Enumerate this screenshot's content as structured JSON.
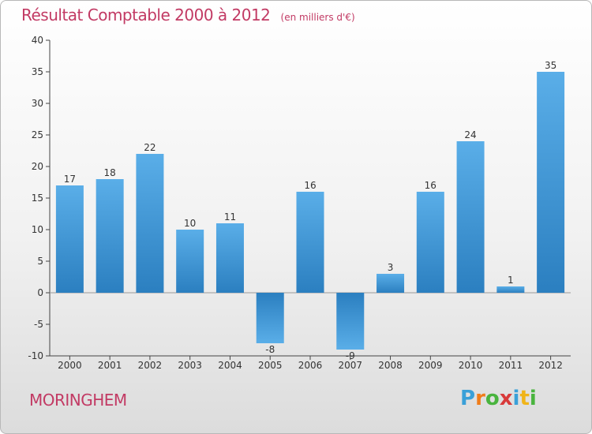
{
  "title": "Résultat Comptable 2000 à 2012",
  "subtitle": "(en milliers d'€)",
  "commune": "MORINGHEM",
  "logo": {
    "letters": [
      "P",
      "r",
      "o",
      "x",
      "i",
      "t",
      "i"
    ],
    "colors": [
      "#3aa0d8",
      "#f07d1a",
      "#49b43e",
      "#d83a3a",
      "#3aa0d8",
      "#f0b419",
      "#49b43e"
    ]
  },
  "chart_data": {
    "type": "bar",
    "categories": [
      "2000",
      "2001",
      "2002",
      "2003",
      "2004",
      "2005",
      "2006",
      "2007",
      "2008",
      "2009",
      "2010",
      "2011",
      "2012"
    ],
    "values": [
      17,
      18,
      22,
      10,
      11,
      -8,
      16,
      -9,
      3,
      16,
      24,
      1,
      35
    ],
    "data_labels": [
      "17",
      "18",
      "22",
      "10",
      "11",
      "-8",
      "16",
      "-9",
      "3",
      "16",
      "24",
      "1",
      "35"
    ],
    "ylim": [
      -10,
      40
    ],
    "yticks": [
      -10,
      -5,
      0,
      5,
      10,
      15,
      20,
      25,
      30,
      35,
      40
    ],
    "ytick_labels": [
      "-10",
      "-5",
      "0",
      "5",
      "10",
      "15",
      "20",
      "25",
      "30",
      "35",
      "40"
    ],
    "grid": false,
    "colors": {
      "bar_light": "#5aaee8",
      "bar_dark": "#2b7fc0",
      "axis": "#444444"
    }
  }
}
